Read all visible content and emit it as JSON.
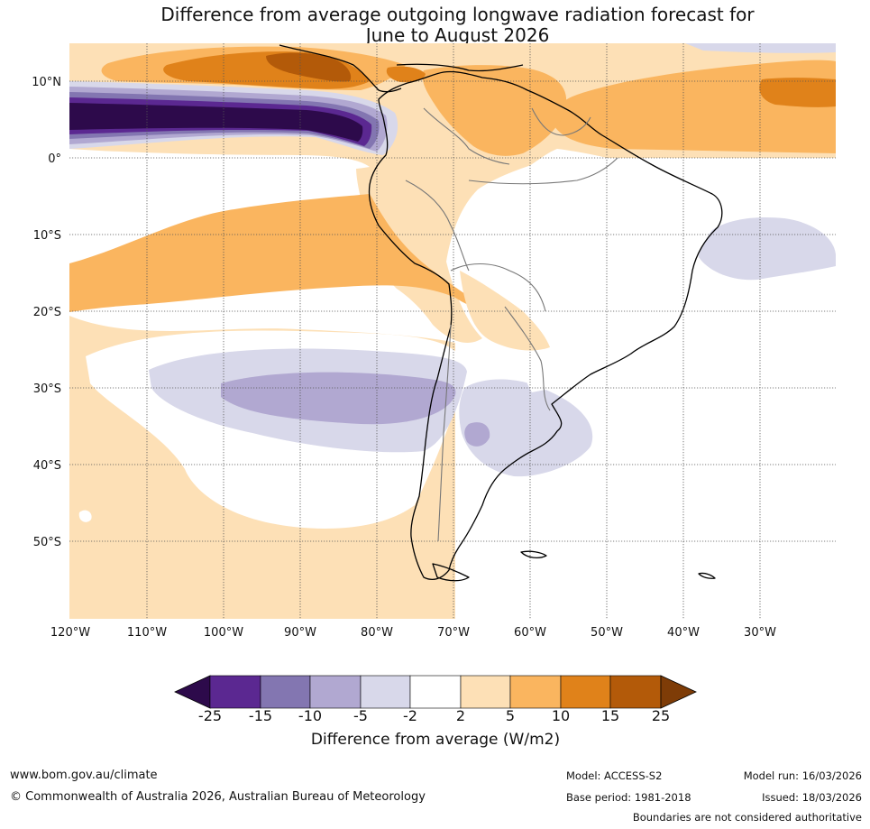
{
  "title": {
    "line1": "Difference from average outgoing longwave radiation forecast for",
    "line2": "June to August 2026"
  },
  "map": {
    "latitudes": [
      "10°N",
      "0°",
      "10°S",
      "20°S",
      "30°S",
      "40°S",
      "50°S"
    ],
    "longitudes": [
      "120°W",
      "110°W",
      "100°W",
      "90°W",
      "80°W",
      "70°W",
      "60°W",
      "50°W",
      "40°W",
      "30°W"
    ]
  },
  "legend": {
    "ticks": [
      "-25",
      "-15",
      "-10",
      "-5",
      "-2",
      "2",
      "5",
      "10",
      "15",
      "25"
    ],
    "label": "Difference from average (W/m2)",
    "colors": {
      "extend_low": "#2d0a4b",
      "b1": "#5b2891",
      "b2": "#8376b1",
      "b3": "#b1a8d1",
      "b4": "#d8d8ea",
      "b5": "#ffffff",
      "b6": "#fde0b6",
      "b7": "#fab55f",
      "b8": "#e0821a",
      "b9": "#b35a09",
      "extend_high": "#7e3c07"
    }
  },
  "footer": {
    "website": "www.bom.gov.au/climate",
    "copyright": "© Commonwealth of Australia 2026, Australian Bureau of Meteorology",
    "model": "Model: ACCESS-S2",
    "base_period": "Base period: 1981-2018",
    "model_run": "Model run: 16/03/2026",
    "issued": "Issued: 18/03/2026",
    "disclaimer": "Boundaries are not considered authoritative"
  }
}
